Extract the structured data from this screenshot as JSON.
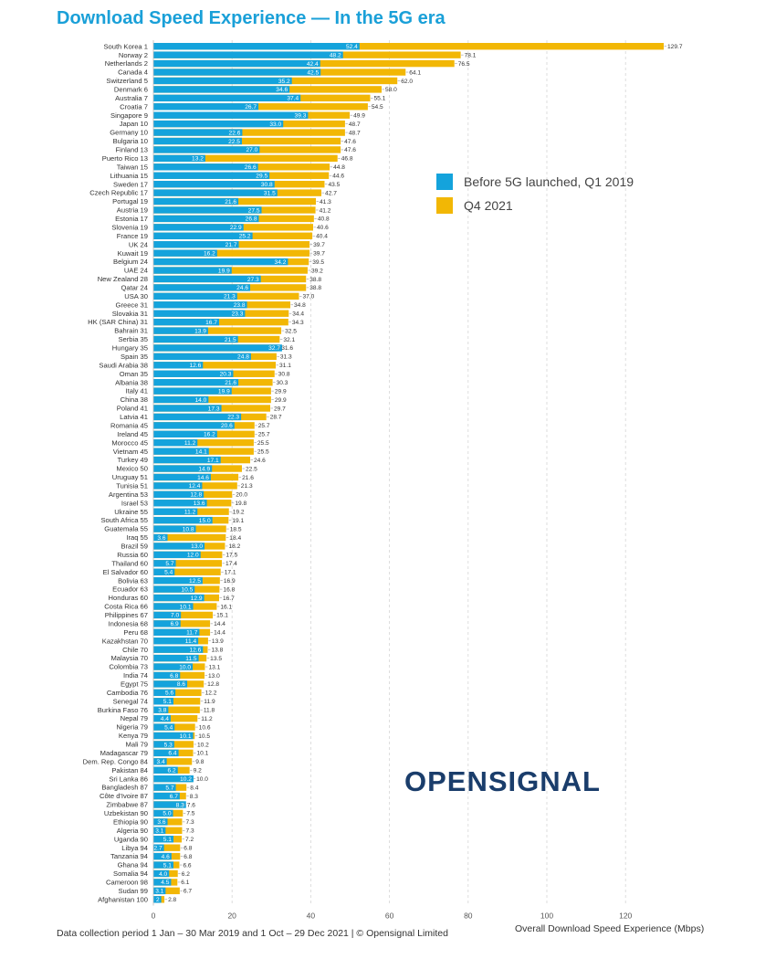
{
  "chart_data": {
    "type": "bar",
    "orientation": "horizontal",
    "title": "Download Speed Experience — In the 5G era",
    "xlabel": "Overall Download Speed Experience (Mbps)",
    "xlim": [
      0,
      135
    ],
    "xticks": [
      0,
      20,
      40,
      60,
      80,
      100,
      120
    ],
    "categories": [
      "South Korea 1",
      "Norway 2",
      "Netherlands 2",
      "Canada 4",
      "Switzerland 5",
      "Denmark 6",
      "Australia 7",
      "Croatia 7",
      "Singapore 9",
      "Japan 10",
      "Germany 10",
      "Bulgaria 10",
      "Finland 13",
      "Puerto Rico 13",
      "Taiwan 15",
      "Lithuania 15",
      "Sweden 17",
      "Czech Republic 17",
      "Portugal 19",
      "Austria 19",
      "Estonia 17",
      "Slovenia 19",
      "France 19",
      "UK 24",
      "Kuwait 19",
      "Belgium 24",
      "UAE 24",
      "New Zealand 28",
      "Qatar 24",
      "USA 30",
      "Greece 31",
      "Slovakia 31",
      "HK (SAR China) 31",
      "Bahrain 31",
      "Serbia 35",
      "Hungary 35",
      "Spain 35",
      "Saudi Arabia 38",
      "Oman 35",
      "Albania 38",
      "Italy 41",
      "China 38",
      "Poland 41",
      "Latvia 41",
      "Romania 45",
      "Ireland 45",
      "Morocco 45",
      "Vietnam 45",
      "Turkey 49",
      "Mexico 50",
      "Uruguay 51",
      "Tunisia 51",
      "Argentina 53",
      "Israel 53",
      "Ukraine 55",
      "South Africa 55",
      "Guatemala 55",
      "Iraq 55",
      "Brazil 59",
      "Russia 60",
      "Thailand 60",
      "El Salvador 60",
      "Bolivia 63",
      "Ecuador 63",
      "Honduras 60",
      "Costa Rica 66",
      "Philippines 67",
      "Indonesia 68",
      "Peru 68",
      "Kazakhstan 70",
      "Chile 70",
      "Malaysia 70",
      "Colombia 73",
      "India 74",
      "Egypt 75",
      "Cambodia 76",
      "Senegal 74",
      "Burkina Faso 76",
      "Nepal 79",
      "Nigeria 79",
      "Kenya 79",
      "Mali 79",
      "Madagascar 79",
      "Dem. Rep. Congo 84",
      "Pakistan 84",
      "Sri Lanka 86",
      "Bangladesh 87",
      "Côte d'Ivoire 87",
      "Zimbabwe 87",
      "Uzbekistan 90",
      "Ethiopia 90",
      "Algeria 90",
      "Uganda 90",
      "Libya 94",
      "Tanzania 94",
      "Ghana 94",
      "Somalia 94",
      "Cameroon 98",
      "Sudan 99",
      "Afghanistan 100"
    ],
    "series": [
      {
        "name": "Before 5G launched, Q1 2019",
        "color": "#14a3dc",
        "values": [
          52.4,
          48.2,
          42.4,
          42.5,
          35.2,
          34.6,
          37.4,
          26.7,
          39.3,
          33.0,
          22.6,
          22.5,
          27.0,
          13.2,
          26.6,
          29.5,
          30.8,
          31.5,
          21.6,
          27.5,
          26.8,
          22.9,
          25.2,
          21.7,
          16.2,
          34.2,
          19.9,
          27.3,
          24.6,
          21.3,
          23.8,
          23.3,
          16.7,
          13.9,
          21.5,
          32.7,
          24.8,
          12.6,
          20.3,
          21.6,
          19.9,
          14.0,
          17.3,
          22.3,
          20.6,
          16.2,
          11.2,
          14.1,
          17.1,
          14.9,
          14.6,
          12.4,
          12.8,
          13.6,
          11.2,
          15.0,
          10.8,
          3.6,
          13.0,
          12.0,
          5.7,
          5.4,
          12.5,
          10.5,
          12.9,
          10.1,
          7.0,
          6.9,
          11.7,
          11.4,
          12.6,
          11.5,
          10.0,
          6.8,
          8.6,
          5.6,
          5.1,
          3.8,
          4.4,
          5.4,
          10.1,
          5.3,
          6.4,
          3.4,
          6.2,
          10.2,
          5.7,
          6.7,
          8.3,
          5.0,
          3.6,
          3.1,
          5.1,
          2.7,
          4.6,
          5.1,
          4.0,
          4.5,
          3.1,
          2.0
        ],
        "labels": [
          "52.4",
          "48.2",
          "42.4",
          "42.5",
          "35.2",
          "34.6",
          "37.4",
          "26.7",
          "39.3",
          "33.0",
          "22.6",
          "22.5",
          "27.0",
          "13.2",
          "26.6",
          "29.5",
          "30.8",
          "31.5",
          "21.6",
          "27.5",
          "26.8",
          "22.9",
          "25.2",
          "21.7",
          "16.2",
          "34.2",
          "19.9",
          "27.3",
          "24.6",
          "21.3",
          "23.8",
          "23.3",
          "16.7",
          "13.9",
          "21.5",
          "32.7",
          "24.8",
          "12.6",
          "20.3",
          "21.6",
          "19.9",
          "14.0",
          "17.3",
          "22.3",
          "20.6",
          "16.2",
          "11.2",
          "14.1",
          "17.1",
          "14.9",
          "14.6",
          "12.4",
          "12.8",
          "13.6",
          "11.2",
          "15.0",
          "10.8",
          "3.6",
          "13.0",
          "12.0",
          "5.7",
          "5.4",
          "12.5",
          "10.5",
          "12.9",
          "10.1",
          "7.0",
          "6.9",
          "11.7",
          "11.4",
          "12.6",
          "11.5",
          "10.0",
          "6.8",
          "8.6",
          "5.6",
          "5.1",
          "3.8",
          "4.4",
          "5.4",
          "10.1",
          "5.3",
          "6.4",
          "3.4",
          "6.2",
          "10.2",
          "5.7",
          "6.7",
          "8.3",
          "5.0",
          "3.6",
          "3.1",
          "5.1",
          "2.7",
          "4.6",
          "5.1",
          "4.0",
          "4.5",
          "3.1",
          "2"
        ]
      },
      {
        "name": "Q4 2021",
        "color": "#f2b705",
        "values": [
          129.7,
          78.1,
          76.5,
          64.1,
          62.0,
          58.0,
          55.1,
          54.5,
          49.9,
          48.7,
          48.7,
          47.6,
          47.6,
          46.8,
          44.8,
          44.6,
          43.5,
          42.7,
          41.3,
          41.2,
          40.8,
          40.6,
          40.4,
          39.7,
          39.7,
          39.5,
          39.2,
          38.8,
          38.8,
          37.0,
          34.8,
          34.4,
          34.3,
          32.5,
          32.1,
          31.6,
          31.3,
          31.1,
          30.8,
          30.3,
          29.9,
          29.9,
          29.7,
          28.7,
          25.7,
          25.7,
          25.5,
          25.5,
          24.6,
          22.5,
          21.6,
          21.3,
          20.0,
          19.8,
          19.2,
          19.1,
          18.5,
          18.4,
          18.2,
          17.5,
          17.4,
          17.1,
          16.9,
          16.8,
          16.7,
          16.1,
          15.1,
          14.4,
          14.4,
          13.9,
          13.8,
          13.5,
          13.1,
          13.0,
          12.8,
          12.2,
          11.9,
          11.8,
          11.2,
          10.6,
          10.5,
          10.2,
          10.1,
          9.8,
          9.2,
          10.0,
          8.4,
          8.3,
          7.6,
          7.5,
          7.3,
          7.3,
          7.2,
          6.8,
          6.8,
          6.6,
          6.2,
          6.1,
          6.7,
          2.8
        ],
        "labels": [
          "129.7",
          "78.1",
          "76.5",
          "64.1",
          "62.0",
          "58.0",
          "55.1",
          "54.5",
          "49.9",
          "48.7",
          "48.7",
          "47.6",
          "47.6",
          "46.8",
          "44.8",
          "44.6",
          "43.5",
          "42.7",
          "41.3",
          "41.2",
          "40.8",
          "40.6",
          "40.4",
          "39.7",
          "39.7",
          "39.5",
          "39.2",
          "38.8",
          "38.8",
          "37.0",
          "34.8",
          "34.4",
          "34.3",
          "32.5",
          "32.1",
          "31.6",
          "31.3",
          "31.1",
          "30.8",
          "30.3",
          "29.9",
          "29.9",
          "29.7",
          "28.7",
          "25.7",
          "25.7",
          "25.5",
          "25.5",
          "24.6",
          "22.5",
          "21.6",
          "21.3",
          "20.0",
          "19.8",
          "19.2",
          "19.1",
          "18.5",
          "18.4",
          "18.2",
          "17.5",
          "17.4",
          "17.1",
          "16.9",
          "16.8",
          "16.7",
          "16.1",
          "15.1",
          "14.4",
          "14.4",
          "13.9",
          "13.8",
          "13.5",
          "13.1",
          "13.0",
          "12.8",
          "12.2",
          "11.9",
          "11.8",
          "11.2",
          "10.6",
          "10.5",
          "10.2",
          "10.1",
          "9.8",
          "9.2",
          "10.0",
          "8.4",
          "8.3",
          "7.6",
          "7.5",
          "7.3",
          "7.3",
          "7.2",
          "6.8",
          "6.8",
          "6.6",
          "6.2",
          "6.1",
          "6.7",
          "2.8"
        ]
      }
    ],
    "legend": "top-right",
    "grid": true
  },
  "legend": {
    "before": "Before 5G launched, Q1 2019",
    "after": "Q4 2021",
    "before_color": "#14a3dc",
    "after_color": "#f2b705"
  },
  "brand": "OPENSIGNAL",
  "footer": "Data collection period 1 Jan – 30 Mar 2019 and 1 Oct – 29 Dec 2021 | © Opensignal Limited"
}
